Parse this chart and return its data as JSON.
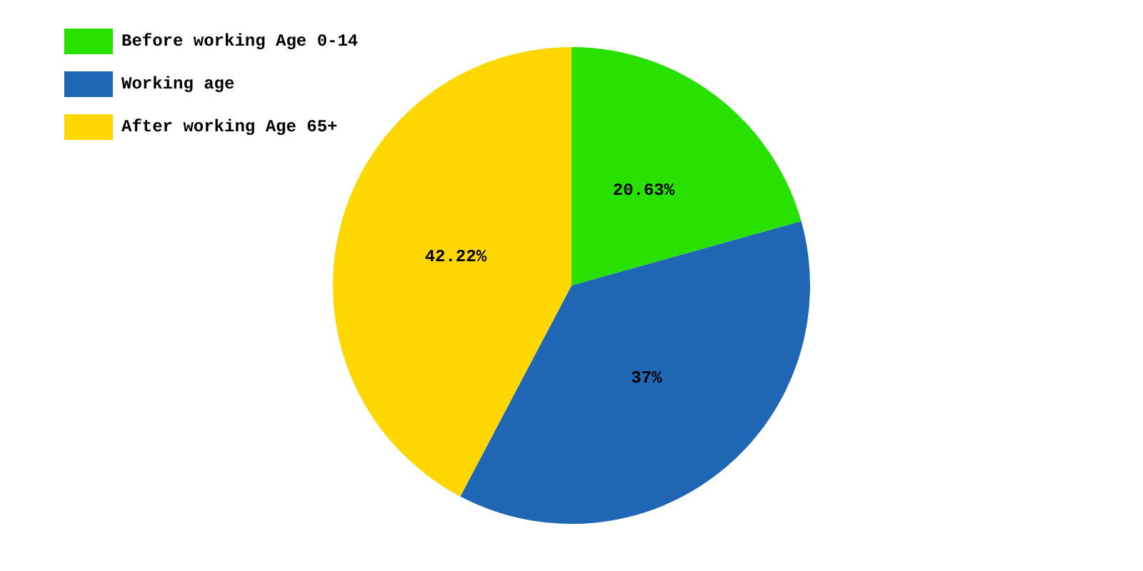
{
  "chart_data": {
    "type": "pie",
    "categories": [
      "Before working Age 0-14",
      "Working age",
      "After working Age 65+"
    ],
    "values": [
      20.63,
      37,
      42.22
    ],
    "colors": [
      "#28e100",
      "#1f66b4",
      "#ffd700"
    ],
    "value_labels": [
      "20.63%",
      "37%",
      "42.22%"
    ],
    "legend": "top left"
  }
}
